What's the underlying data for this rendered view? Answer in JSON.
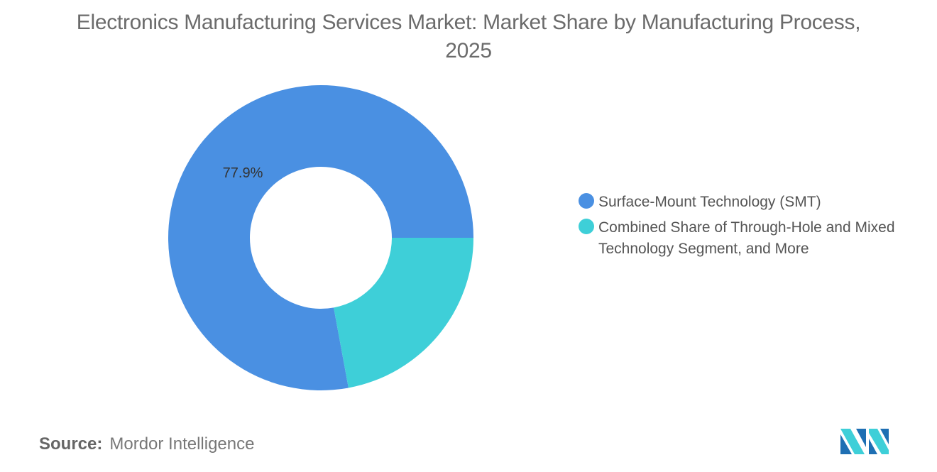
{
  "chart_data": {
    "type": "pie",
    "variant": "donut",
    "title": "Electronics Manufacturing Services Market: Market Share by Manufacturing Process, 2025",
    "categories": [
      "Surface-Mount Technology (SMT)",
      "Combined Share of Through-Hole and Mixed Technology Segment, and More"
    ],
    "values": [
      77.9,
      22.1
    ],
    "data_labels": [
      "77.9%",
      ""
    ],
    "colors": [
      "#4a90e2",
      "#3ecfd8"
    ],
    "legend_position": "right"
  },
  "source": {
    "label": "Source:",
    "value": "Mordor Intelligence"
  },
  "logo": {
    "text": "Mordor Intelligence",
    "colors": [
      "#1e6fb3",
      "#3ecfd8"
    ]
  }
}
